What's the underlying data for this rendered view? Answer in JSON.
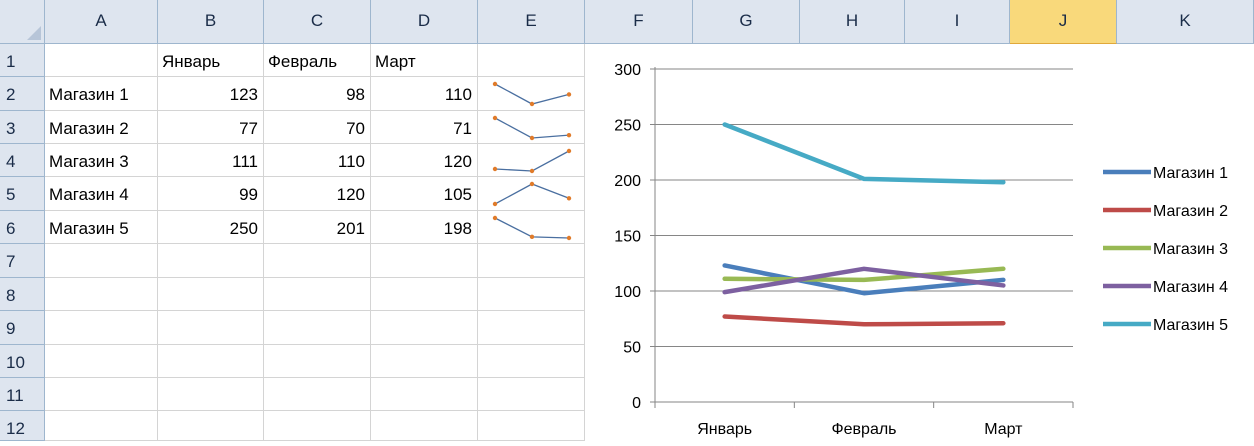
{
  "sheet": {
    "columns": [
      "A",
      "B",
      "C",
      "D",
      "E",
      "F",
      "G",
      "H",
      "I",
      "J",
      "K"
    ],
    "active_column": "J",
    "rows": [
      "1",
      "2",
      "3",
      "4",
      "5",
      "6",
      "7",
      "8",
      "9",
      "10",
      "11",
      "12"
    ],
    "header_row": [
      "",
      "Январь",
      "Февраль",
      "Март"
    ],
    "data_rows": [
      {
        "name": "Магазин 1",
        "values": [
          "123",
          "98",
          "110"
        ]
      },
      {
        "name": "Магазин 2",
        "values": [
          "77",
          "70",
          "71"
        ]
      },
      {
        "name": "Магазин 3",
        "values": [
          "111",
          "110",
          "120"
        ]
      },
      {
        "name": "Магазин 4",
        "values": [
          "99",
          "120",
          "105"
        ]
      },
      {
        "name": "Магазин 5",
        "values": [
          "250",
          "201",
          "198"
        ]
      }
    ]
  },
  "colors": {
    "header_bg": "#dee5ef",
    "active_header_bg": "#f9d97b",
    "gridline": "#d4d4d4",
    "sparkline_line": "#4a6fa0",
    "sparkline_marker": "#e07b2a"
  },
  "chart_data": {
    "type": "line",
    "categories": [
      "Январь",
      "Февраль",
      "Март"
    ],
    "ylim": [
      0,
      300
    ],
    "yticks": [
      "0",
      "50",
      "100",
      "150",
      "200",
      "250",
      "300"
    ],
    "grid": true,
    "legend": "right",
    "series": [
      {
        "name": "Магазин 1",
        "values": [
          123,
          98,
          110
        ],
        "color": "#4a7ebb"
      },
      {
        "name": "Магазин 2",
        "values": [
          77,
          70,
          71
        ],
        "color": "#be4b48"
      },
      {
        "name": "Магазин 3",
        "values": [
          111,
          110,
          120
        ],
        "color": "#98b954"
      },
      {
        "name": "Магазин 4",
        "values": [
          99,
          120,
          105
        ],
        "color": "#7d60a0"
      },
      {
        "name": "Магазин 5",
        "values": [
          250,
          201,
          198
        ],
        "color": "#46aac5"
      }
    ]
  }
}
